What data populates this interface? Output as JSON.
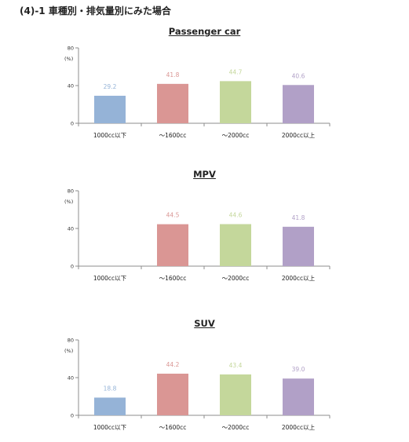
{
  "heading": "(4)-1 車種別・排気量別にみた場合",
  "unit": "(%)",
  "colors": [
    "#95b3d7",
    "#da9694",
    "#c4d79b",
    "#b1a0c7"
  ],
  "categories": [
    "1000cc以下",
    "～1600cc",
    "～2000cc",
    "2000cc以上"
  ],
  "chart_data": [
    {
      "type": "bar",
      "title": "Passenger car",
      "categories": [
        "1000cc以下",
        "～1600cc",
        "～2000cc",
        "2000cc以上"
      ],
      "values": [
        29.2,
        41.8,
        44.7,
        40.6
      ],
      "labels": [
        "29.2",
        "41.8",
        "44.7",
        "40.6"
      ],
      "ylim": [
        0,
        80
      ],
      "yticks": [
        0,
        40,
        80
      ],
      "ylabel": "(%)",
      "grid": false,
      "legend": "none"
    },
    {
      "type": "bar",
      "title": "MPV",
      "categories": [
        "1000cc以下",
        "～1600cc",
        "～2000cc",
        "2000cc以上"
      ],
      "values": [
        null,
        44.5,
        44.6,
        41.8
      ],
      "labels": [
        "",
        "44.5",
        "44.6",
        "41.8"
      ],
      "ylim": [
        0,
        80
      ],
      "yticks": [
        0,
        40,
        80
      ],
      "ylabel": "(%)",
      "grid": false,
      "legend": "none"
    },
    {
      "type": "bar",
      "title": "SUV",
      "categories": [
        "1000cc以下",
        "～1600cc",
        "～2000cc",
        "2000cc以上"
      ],
      "values": [
        18.8,
        44.2,
        43.4,
        39.0
      ],
      "labels": [
        "18.8",
        "44.2",
        "43.4",
        "39.0"
      ],
      "ylim": [
        0,
        80
      ],
      "yticks": [
        0,
        40,
        80
      ],
      "ylabel": "(%)",
      "grid": false,
      "legend": "none"
    }
  ]
}
